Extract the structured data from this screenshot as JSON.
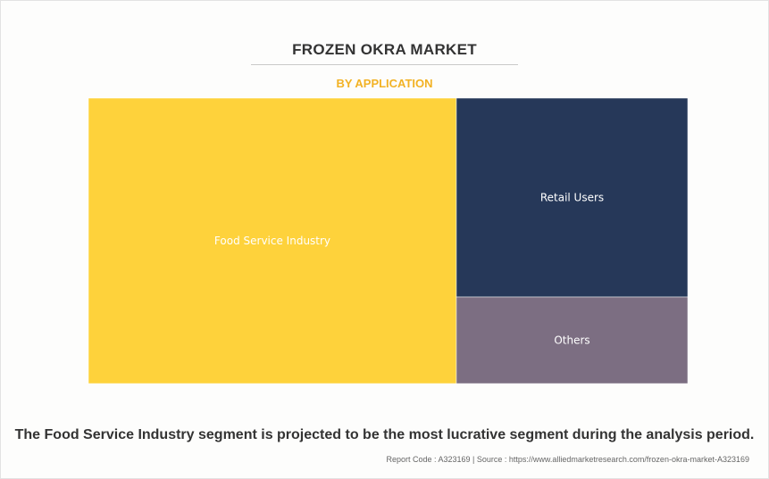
{
  "header": {
    "title": "FROZEN OKRA MARKET",
    "subtitle": "BY APPLICATION"
  },
  "chart_data": {
    "type": "treemap",
    "title": "FROZEN OKRA MARKET",
    "subtitle": "BY APPLICATION",
    "items": [
      {
        "label": "Food Service Industry",
        "value": 61.4,
        "color": "#fed23b"
      },
      {
        "label": "Retail Users",
        "value": 26.9,
        "color": "#263859"
      },
      {
        "label": "Others",
        "value": 11.7,
        "color": "#7c6e82"
      }
    ]
  },
  "footer": {
    "statement": "The Food Service Industry segment is projected to be the most lucrative segment during the analysis period.",
    "source": "Report Code : A323169  |  Source : https://www.alliedmarketresearch.com/frozen-okra-market-A323169"
  }
}
